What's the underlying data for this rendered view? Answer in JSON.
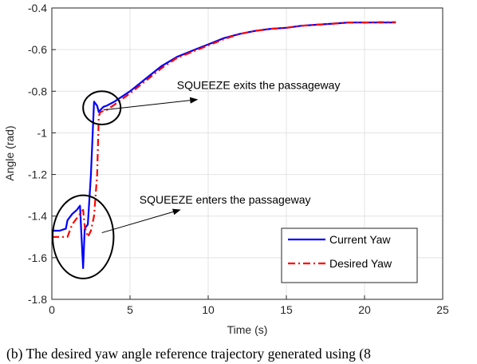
{
  "caption": "(b) The desired yaw angle reference trajectory generated using (8",
  "chart_data": {
    "type": "line",
    "title": "",
    "xlabel": "Time (s)",
    "ylabel": "Angle (rad)",
    "xlim": [
      0,
      25
    ],
    "ylim": [
      -1.8,
      -0.4
    ],
    "xticks": [
      "0",
      "5",
      "10",
      "15",
      "20",
      "25"
    ],
    "yticks": [
      "-1.8",
      "-1.6",
      "-1.4",
      "-1.2",
      "-1",
      "-0.8",
      "-0.6",
      "-0.4"
    ],
    "grid": true,
    "legend_position": "bottom-right",
    "series": [
      {
        "name": "Current Yaw",
        "color": "#0000ff",
        "style": "solid",
        "x": [
          0,
          0.5,
          0.9,
          1.0,
          1.3,
          1.6,
          1.8,
          1.9,
          2.0,
          2.1,
          2.3,
          2.5,
          2.7,
          2.9,
          3.0,
          3.1,
          3.3,
          3.5,
          4,
          5,
          6,
          7,
          8,
          9,
          10,
          11,
          12,
          13,
          14,
          15,
          16,
          17,
          18,
          19,
          20,
          21,
          22
        ],
        "y": [
          -1.47,
          -1.47,
          -1.46,
          -1.42,
          -1.39,
          -1.37,
          -1.35,
          -1.5,
          -1.65,
          -1.46,
          -1.44,
          -1.2,
          -0.85,
          -0.87,
          -0.9,
          -0.89,
          -0.875,
          -0.87,
          -0.85,
          -0.8,
          -0.74,
          -0.68,
          -0.635,
          -0.605,
          -0.575,
          -0.545,
          -0.525,
          -0.51,
          -0.5,
          -0.495,
          -0.485,
          -0.48,
          -0.475,
          -0.47,
          -0.47,
          -0.47,
          -0.47
        ]
      },
      {
        "name": "Desired Yaw",
        "color": "#ff0000",
        "style": "dashdot",
        "x": [
          0,
          0.5,
          1.0,
          1.3,
          1.5,
          1.8,
          2.0,
          2.1,
          2.3,
          2.5,
          2.7,
          2.9,
          3.0,
          3.1,
          3.3,
          3.5,
          4,
          5,
          6,
          7,
          8,
          9,
          10,
          11,
          12,
          13,
          14,
          15,
          16,
          17,
          18,
          19,
          20,
          21,
          22
        ],
        "y": [
          -1.5,
          -1.5,
          -1.5,
          -1.44,
          -1.42,
          -1.39,
          -1.37,
          -1.45,
          -1.5,
          -1.47,
          -1.4,
          -1.2,
          -0.92,
          -0.9,
          -0.895,
          -0.89,
          -0.865,
          -0.81,
          -0.75,
          -0.69,
          -0.64,
          -0.61,
          -0.58,
          -0.55,
          -0.525,
          -0.51,
          -0.5,
          -0.495,
          -0.485,
          -0.48,
          -0.475,
          -0.47,
          -0.47,
          -0.468,
          -0.468
        ]
      }
    ],
    "annotations": [
      {
        "text": "SQUEEZE exits the passageway",
        "center": [
          3.2,
          -0.88
        ],
        "rx": 1.2,
        "ry": 0.08,
        "text_at": [
          8,
          -0.79
        ],
        "arrow_from": [
          3.3,
          -0.89
        ],
        "arrow_to": [
          9.3,
          -0.84
        ]
      },
      {
        "text": "SQUEEZE enters the passageway",
        "center": [
          2.0,
          -1.5
        ],
        "rx": 1.95,
        "ry": 0.2,
        "text_at": [
          5.6,
          -1.34
        ],
        "arrow_from": [
          3.2,
          -1.48
        ],
        "arrow_to": [
          8.2,
          -1.37
        ]
      }
    ]
  }
}
